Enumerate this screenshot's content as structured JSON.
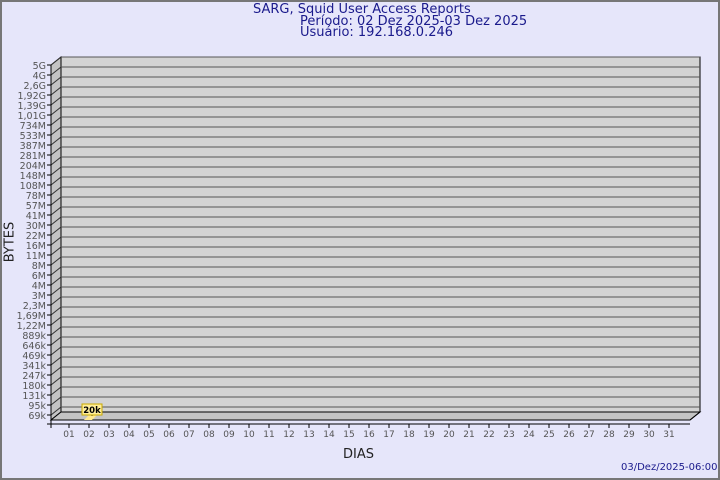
{
  "chart_data": {
    "type": "bar",
    "title": "SARG, Squid User Access Reports",
    "subtitle_period": "Período: 02 Dez 2025-03 Dez 2025",
    "subtitle_user": "Usuário: 192.168.0.246",
    "xlabel": "DIAS",
    "ylabel": "BYTES",
    "footer": "03/Dez/2025-06:00",
    "y_scale": "log",
    "y_tick_labels": [
      "5G",
      "4G",
      "2,6G",
      "1,92G",
      "1,39G",
      "1,01G",
      "734M",
      "533M",
      "387M",
      "281M",
      "204M",
      "148M",
      "108M",
      "78M",
      "57M",
      "41M",
      "30M",
      "22M",
      "16M",
      "11M",
      "8M",
      "6M",
      "4M",
      "3M",
      "2,3M",
      "1,69M",
      "1,22M",
      "889k",
      "646k",
      "469k",
      "341k",
      "247k",
      "180k",
      "131k",
      "95k",
      "69k"
    ],
    "categories": [
      "01",
      "02",
      "03",
      "04",
      "05",
      "06",
      "07",
      "08",
      "09",
      "10",
      "11",
      "12",
      "13",
      "14",
      "15",
      "16",
      "17",
      "18",
      "19",
      "20",
      "21",
      "22",
      "23",
      "24",
      "25",
      "26",
      "27",
      "28",
      "29",
      "30",
      "31"
    ],
    "series": [
      {
        "points": [
          {
            "x": "02",
            "value": 20000,
            "label": "20k"
          }
        ]
      }
    ],
    "grid": true,
    "colors": {
      "background": "#e6e6fa",
      "plot": "#d3d3d3",
      "bar": "#ffe98f",
      "text": "#1a1a8c",
      "tick_text": "#555555"
    }
  }
}
